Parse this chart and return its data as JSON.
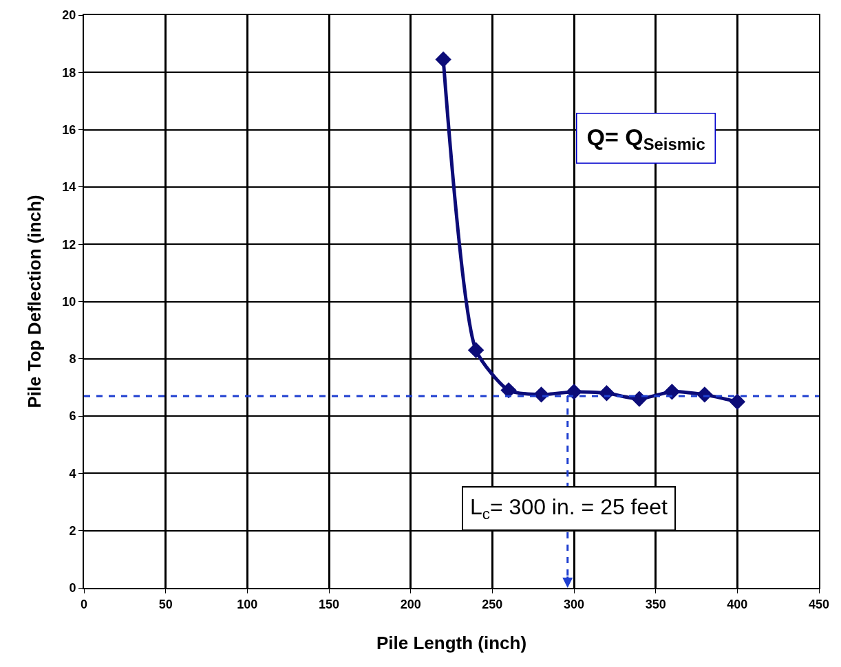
{
  "chart_data": {
    "type": "line",
    "xlabel": "Pile Length (inch)",
    "ylabel": "Pile Top Deflection (inch)",
    "x": [
      220,
      240,
      260,
      280,
      300,
      320,
      340,
      360,
      380,
      400
    ],
    "series": [
      {
        "color": "#0c0c78",
        "values": [
          18.45,
          8.3,
          6.9,
          6.75,
          6.85,
          6.8,
          6.6,
          6.85,
          6.75,
          6.5
        ]
      }
    ],
    "xlim": [
      0,
      450
    ],
    "xticks": [
      0,
      50,
      100,
      150,
      200,
      250,
      300,
      350,
      400,
      450
    ],
    "ylim": [
      0,
      20
    ],
    "yticks": [
      0,
      2,
      4,
      6,
      8,
      10,
      12,
      14,
      16,
      18,
      20
    ],
    "grid": true,
    "marker": "diamond",
    "line_style": "solid",
    "ref_lines": [
      {
        "axis": "y",
        "value": 6.7,
        "color": "#1f3fd0",
        "line_style": "dashed"
      }
    ],
    "annotations": [
      "Q= Q$_{Seismic}$",
      "L$_{c}$= 300 in. = 25 feet"
    ]
  }
}
